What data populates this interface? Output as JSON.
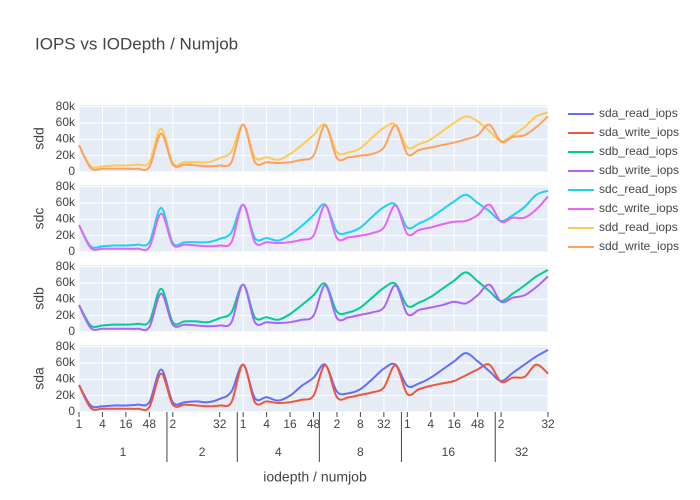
{
  "chart_data": {
    "type": "line",
    "title": "IOPS vs IODepth / Numjob",
    "xlabel": "iodepth / numjob",
    "groups": [
      {
        "name": "1",
        "categories": [
          1,
          null,
          4,
          null,
          16,
          null,
          48,
          null
        ]
      },
      {
        "name": "2",
        "categories": [
          2,
          null,
          null,
          null,
          32,
          null
        ]
      },
      {
        "name": "4",
        "categories": [
          1,
          null,
          4,
          null,
          16,
          null,
          48
        ]
      },
      {
        "name": "8",
        "categories": [
          null,
          2,
          null,
          8,
          null,
          32,
          null
        ]
      },
      {
        "name": "16",
        "categories": [
          1,
          null,
          4,
          null,
          16,
          null,
          48,
          null
        ]
      },
      {
        "name": "32",
        "categories": [
          2,
          null,
          null,
          null,
          32
        ]
      }
    ],
    "ylim": [
      0,
      82000
    ],
    "yticks": [
      0,
      {
        "value": 20000,
        "label": "20k"
      },
      {
        "value": 40000,
        "label": "40k"
      },
      {
        "value": 60000,
        "label": "60k"
      },
      {
        "value": 80000,
        "label": "80k"
      }
    ],
    "grid": true,
    "legend": "right",
    "panels": [
      {
        "ylabel": "sda",
        "series": [
          {
            "name": "sda_read_iops",
            "color": "#636efa",
            "values": [
              33000,
              8000,
              7000,
              8000,
              8000,
              9000,
              12000,
              52000,
              12000,
              12000,
              13000,
              12000,
              16000,
              25000,
              58000,
              17000,
              18000,
              14000,
              20000,
              32000,
              42000,
              58000,
              25000,
              23000,
              28000,
              40000,
              53000,
              58000,
              32000,
              35000,
              42000,
              52000,
              62000,
              72000,
              62000,
              50000,
              38000,
              48000,
              58000,
              68000,
              76000
            ]
          },
          {
            "name": "sda_write_iops",
            "color": "#EF553B",
            "values": [
              33000,
              5000,
              4000,
              4000,
              4000,
              4000,
              6000,
              47000,
              9000,
              9000,
              8000,
              7000,
              8000,
              12000,
              58000,
              12000,
              13000,
              11000,
              12000,
              15000,
              20000,
              57000,
              18000,
              18000,
              21000,
              24000,
              30000,
              57000,
              22000,
              28000,
              32000,
              35000,
              38000,
              45000,
              52000,
              58000,
              37000,
              42000,
              43000,
              58000,
              47000
            ]
          }
        ]
      },
      {
        "ylabel": "sdb",
        "series": [
          {
            "name": "sdb_read_iops",
            "color": "#00cc96",
            "values": [
              33000,
              8000,
              8000,
              9000,
              9000,
              10000,
              13000,
              53000,
              12000,
              13000,
              13000,
              12000,
              17000,
              24000,
              58000,
              18000,
              18000,
              15000,
              22000,
              33000,
              45000,
              59000,
              25000,
              24000,
              30000,
              42000,
              54000,
              59000,
              32000,
              36000,
              43000,
              53000,
              63000,
              73000,
              62000,
              50000,
              38000,
              47000,
              57000,
              68000,
              76000
            ]
          },
          {
            "name": "sdb_write_iops",
            "color": "#ab63fa",
            "values": [
              33000,
              5000,
              4000,
              4000,
              4000,
              4000,
              6000,
              47000,
              9000,
              9000,
              8000,
              7000,
              8000,
              12000,
              58000,
              12000,
              12000,
              11000,
              12000,
              15000,
              20000,
              57000,
              17000,
              18000,
              21000,
              24000,
              30000,
              57000,
              22000,
              27000,
              30000,
              33000,
              37000,
              35000,
              45000,
              58000,
              37000,
              42000,
              45000,
              55000,
              68000
            ]
          }
        ]
      },
      {
        "ylabel": "sdc",
        "series": [
          {
            "name": "sdc_read_iops",
            "color": "#19d3f3",
            "values": [
              33000,
              7000,
              7000,
              8000,
              8000,
              9000,
              12000,
              54000,
              11000,
              12000,
              12000,
              12000,
              16000,
              24000,
              58000,
              17000,
              17000,
              14000,
              21000,
              32000,
              45000,
              58000,
              25000,
              24000,
              30000,
              43000,
              55000,
              58000,
              30000,
              35000,
              42000,
              52000,
              62000,
              70000,
              60000,
              50000,
              38000,
              45000,
              55000,
              70000,
              75000
            ]
          },
          {
            "name": "sdc_write_iops",
            "color": "#e763fa",
            "values": [
              33000,
              5000,
              4000,
              4000,
              4000,
              4000,
              6000,
              47000,
              9000,
              9000,
              8000,
              7000,
              8000,
              12000,
              58000,
              12000,
              12000,
              11000,
              12000,
              15000,
              20000,
              57000,
              17000,
              18000,
              20000,
              23000,
              30000,
              57000,
              22000,
              27000,
              30000,
              34000,
              37000,
              38000,
              45000,
              58000,
              37000,
              42000,
              42000,
              52000,
              68000
            ]
          }
        ]
      },
      {
        "ylabel": "sdd",
        "series": [
          {
            "name": "sdd_read_iops",
            "color": "#FECB52",
            "values": [
              33000,
              7000,
              7000,
              8000,
              8000,
              9000,
              12000,
              53000,
              11000,
              12000,
              12000,
              12000,
              17000,
              25000,
              58000,
              18000,
              18000,
              15000,
              22000,
              33000,
              45000,
              58000,
              24000,
              24000,
              29000,
              42000,
              54000,
              58000,
              30000,
              34000,
              40000,
              50000,
              60000,
              68000,
              62000,
              50000,
              38000,
              45000,
              55000,
              68000,
              73000
            ]
          },
          {
            "name": "sdd_write_iops",
            "color": "#FFA15A",
            "values": [
              33000,
              5000,
              4000,
              4000,
              4000,
              4000,
              6000,
              47000,
              9000,
              9000,
              8000,
              7000,
              8000,
              12000,
              58000,
              12000,
              12000,
              11000,
              12000,
              15000,
              20000,
              57000,
              17000,
              18000,
              20000,
              22000,
              30000,
              57000,
              22000,
              27000,
              30000,
              33000,
              36000,
              40000,
              45000,
              58000,
              37000,
              43000,
              45000,
              55000,
              68000
            ]
          }
        ]
      }
    ]
  }
}
